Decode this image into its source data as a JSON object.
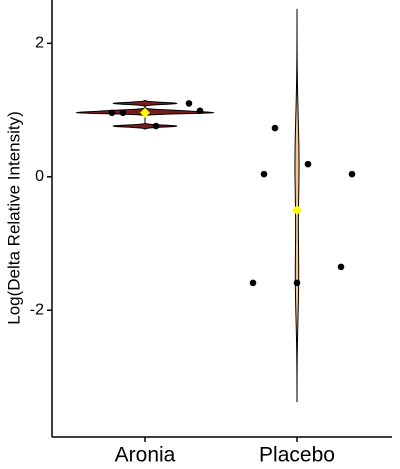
{
  "chart_data": {
    "type": "violin",
    "y_label": "Log(Delta Relative Intensity)",
    "categories": [
      "Aronia",
      "Placebo"
    ],
    "groups": [
      {
        "color": "#7a1c1c",
        "values": [
          0.96,
          0.99,
          0.76,
          0.96,
          1.1
        ],
        "mean": 0.96
      },
      {
        "color": "#f6c48e",
        "values": [
          0.73,
          0.04,
          0.19,
          0.04,
          -1.35,
          -1.59,
          -1.59
        ],
        "mean": -0.5
      }
    ],
    "point_color": "#000000",
    "mean_color": "#ffff00",
    "ylim": [
      -3.9,
      2.65
    ],
    "yticks": [
      -2,
      0,
      2
    ]
  }
}
